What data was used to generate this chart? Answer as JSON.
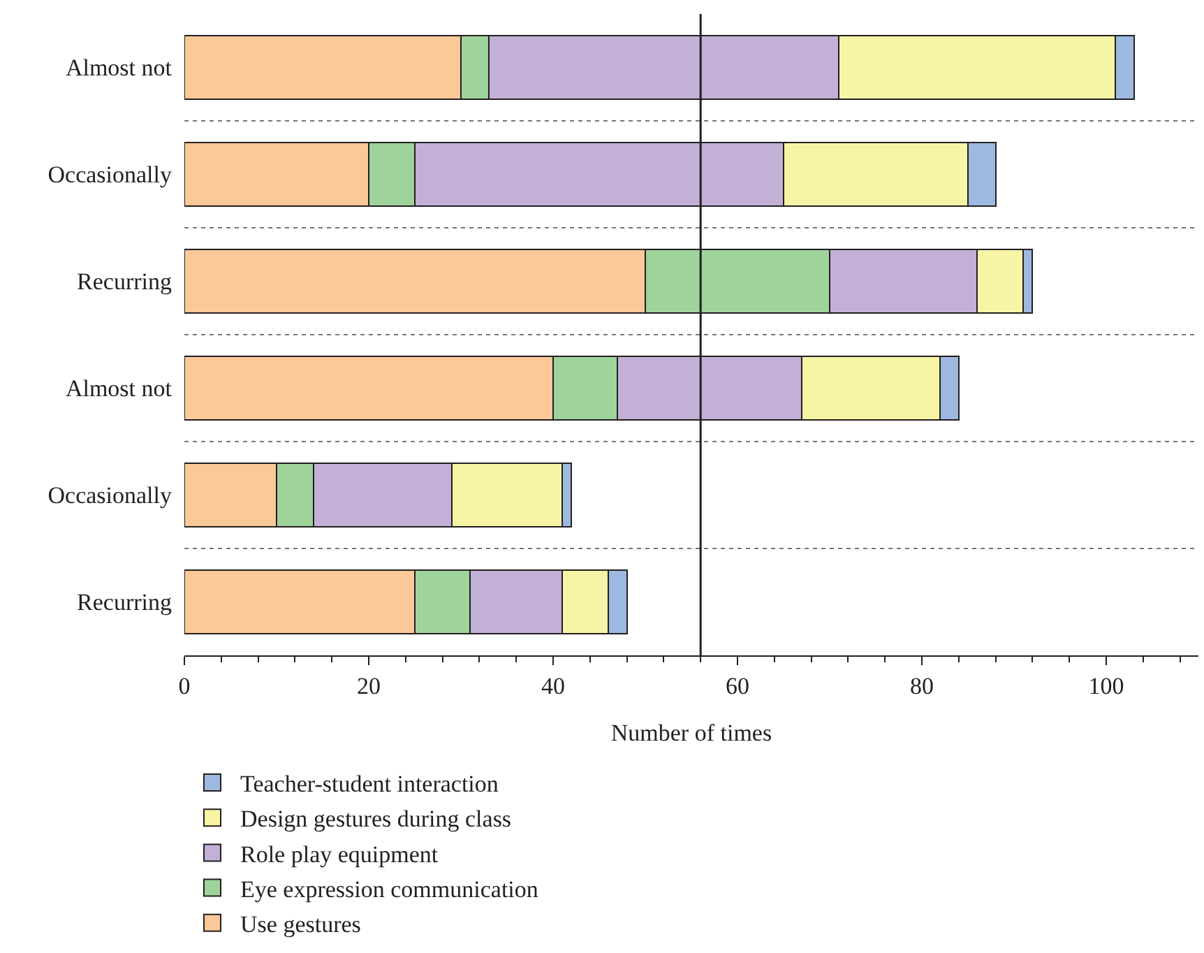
{
  "chart_data": {
    "type": "bar",
    "orientation": "horizontal",
    "stacked": true,
    "xlabel": "Number of times",
    "categories": [
      "Almost not",
      "Occasionally",
      "Recurring",
      "Almost not",
      "Occasionally",
      "Recurring"
    ],
    "series": [
      {
        "name": "Use gestures",
        "color": "#fbc898",
        "values": [
          30,
          20,
          50,
          40,
          10,
          25
        ]
      },
      {
        "name": "Eye expression communication",
        "color": "#9fd39c",
        "values": [
          3,
          5,
          20,
          7,
          4,
          6
        ]
      },
      {
        "name": "Role play equipment",
        "color": "#c2b0d6",
        "values": [
          38,
          40,
          16,
          20,
          15,
          10
        ]
      },
      {
        "name": "Design gestures during class",
        "color": "#f8f4a6",
        "values": [
          30,
          20,
          5,
          15,
          12,
          5
        ]
      },
      {
        "name": "Teacher-student interaction",
        "color": "#9db9e0",
        "values": [
          2,
          3,
          1,
          2,
          1,
          2
        ]
      }
    ],
    "xlim": [
      0,
      110
    ],
    "xticks": [
      0,
      20,
      40,
      60,
      80,
      100
    ],
    "ref_lines": [
      {
        "axis": "x",
        "value": 56,
        "color": "#231f20"
      }
    ],
    "grid": "y",
    "legend": "bottom"
  }
}
